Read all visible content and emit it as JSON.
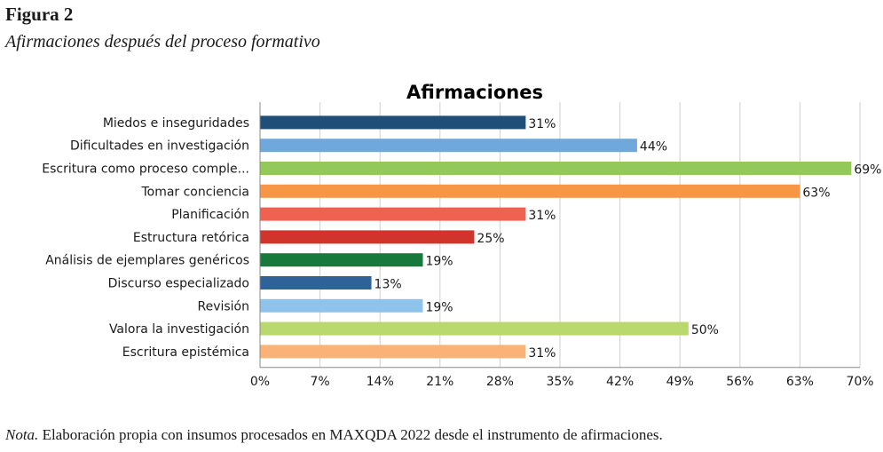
{
  "figure": {
    "label": "Figura 2",
    "caption": "Afirmaciones después del proceso formativo",
    "note_prefix": "Nota.",
    "note_text": " Elaboración propia con insumos procesados en MAXQDA 2022 desde el instrumento de afirmaciones."
  },
  "chart_data": {
    "type": "bar",
    "orientation": "horizontal",
    "title": "Afirmaciones",
    "xlabel": "",
    "ylabel": "",
    "xlim": [
      0,
      70
    ],
    "ticks": [
      "0%",
      "7%",
      "14%",
      "21%",
      "28%",
      "35%",
      "42%",
      "49%",
      "56%",
      "63%",
      "70%"
    ],
    "grid": true,
    "categories": [
      "Miedos e inseguridades",
      "Dificultades en investigación",
      "Escritura como proceso comple...",
      "Tomar conciencia",
      "Planificación",
      "Estructura retórica",
      "Análisis de ejemplares genéricos",
      "Discurso especializado",
      "Revisión",
      "Valora la investigación",
      "Escritura epistémica"
    ],
    "values": [
      31,
      44,
      69,
      63,
      31,
      25,
      19,
      13,
      19,
      50,
      31
    ],
    "value_labels": [
      "31%",
      "44%",
      "69%",
      "63%",
      "31%",
      "25%",
      "19%",
      "13%",
      "19%",
      "50%",
      "31%"
    ],
    "colors": [
      "#1f4e79",
      "#6fa8dc",
      "#92c95a",
      "#f79646",
      "#f0614f",
      "#d0342c",
      "#177a3c",
      "#2e6298",
      "#8ec3ec",
      "#b9d86e",
      "#fbb277"
    ]
  }
}
